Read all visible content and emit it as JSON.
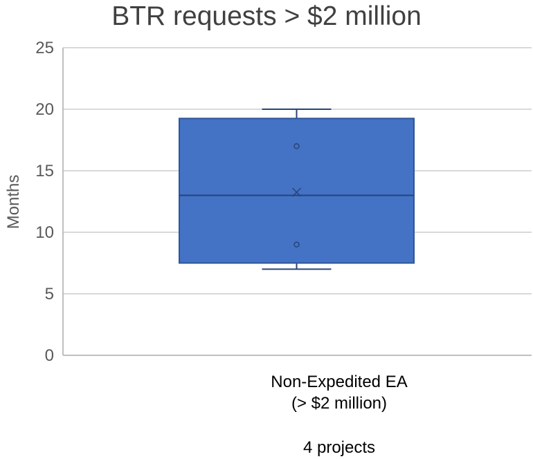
{
  "chart_data": {
    "type": "box",
    "title": "BTR requests > $2 million",
    "ylabel": "Months",
    "xlabel": "",
    "ylim": [
      0,
      25
    ],
    "yticks": [
      0,
      5,
      10,
      15,
      20,
      25
    ],
    "grid": true,
    "categories": [
      "Non-Expedited EA\n(> $2 million)\n\n4 projects"
    ],
    "category_lines": [
      "Non-Expedited EA",
      "(> $2 million)",
      "",
      "4 projects"
    ],
    "boxes": [
      {
        "category": "Non-Expedited EA (> $2 million)",
        "whisker_low": 7,
        "q1": 7.5,
        "median": 13,
        "mean": 13.25,
        "q3": 19.25,
        "whisker_high": 20,
        "points": [
          7,
          9,
          17,
          20
        ]
      }
    ],
    "colors": {
      "box_fill": "#4472C4",
      "box_stroke": "#2F5597",
      "line": "#264478",
      "grid": "#D9D9D9",
      "axis": "#BFBFBF"
    }
  }
}
